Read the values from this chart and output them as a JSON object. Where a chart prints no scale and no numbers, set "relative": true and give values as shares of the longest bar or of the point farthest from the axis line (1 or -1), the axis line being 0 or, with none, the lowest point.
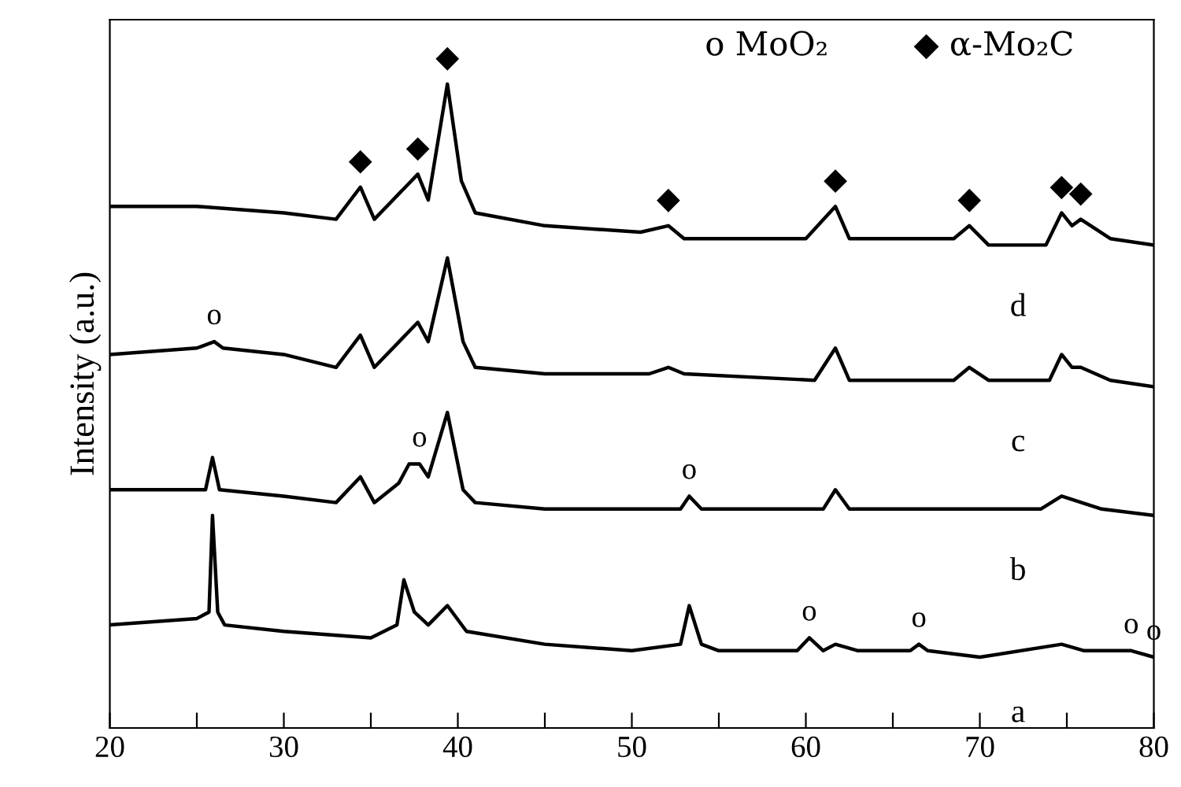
{
  "chart_data": {
    "type": "line",
    "relative": true,
    "ylabel": "Intensity (a.u.)",
    "xlim": [
      20,
      80
    ],
    "xticks": [
      20,
      {
        "value": 25,
        "label": null
      },
      30,
      {
        "value": 35,
        "label": null
      },
      40,
      {
        "value": 45,
        "label": null
      },
      50,
      {
        "value": 55,
        "label": null
      },
      60,
      {
        "value": 65,
        "label": null
      },
      70,
      {
        "value": 75,
        "label": null
      },
      80
    ],
    "tick_labels": "x",
    "grid": false,
    "legend": false,
    "marker": "none",
    "line_style": "solid",
    "series": [
      {
        "name": "d",
        "color": "#000000",
        "x": [
          20,
          25,
          30,
          33,
          34.4,
          35.2,
          37.7,
          38.3,
          39.4,
          40.2,
          41,
          45,
          50.5,
          52.1,
          53,
          60,
          61.7,
          62.5,
          68.5,
          69.4,
          70.5,
          73.8,
          74.7,
          75.3,
          75.8,
          77.5,
          80
        ],
        "values": [
          0.81,
          0.81,
          0.8,
          0.79,
          0.84,
          0.79,
          0.86,
          0.82,
          1.0,
          0.85,
          0.8,
          0.78,
          0.77,
          0.78,
          0.76,
          0.76,
          0.81,
          0.76,
          0.76,
          0.78,
          0.75,
          0.75,
          0.8,
          0.78,
          0.79,
          0.76,
          0.75
        ]
      },
      {
        "name": "c",
        "color": "#000000",
        "x": [
          20,
          25,
          26,
          26.5,
          30,
          33,
          34.4,
          35.2,
          37.7,
          38.3,
          39.4,
          40.3,
          41,
          45,
          51,
          52.1,
          53,
          60.5,
          61.7,
          62.5,
          68.5,
          69.4,
          70.5,
          74,
          74.7,
          75.3,
          75.8,
          77.5,
          80
        ],
        "values": [
          0.58,
          0.59,
          0.6,
          0.59,
          0.58,
          0.56,
          0.61,
          0.56,
          0.63,
          0.6,
          0.73,
          0.6,
          0.56,
          0.55,
          0.55,
          0.56,
          0.55,
          0.54,
          0.59,
          0.54,
          0.54,
          0.56,
          0.54,
          0.54,
          0.58,
          0.56,
          0.56,
          0.54,
          0.53
        ]
      },
      {
        "name": "b",
        "color": "#000000",
        "x": [
          20,
          25.5,
          25.9,
          26.3,
          30,
          33,
          34.4,
          35.2,
          36.6,
          37.2,
          37.8,
          38.3,
          39.4,
          40.3,
          41,
          45,
          52.8,
          53.3,
          54,
          61,
          61.7,
          62.5,
          69.4,
          73.5,
          74.7,
          77,
          80
        ],
        "values": [
          0.37,
          0.37,
          0.42,
          0.37,
          0.36,
          0.35,
          0.39,
          0.35,
          0.38,
          0.41,
          0.41,
          0.39,
          0.49,
          0.37,
          0.35,
          0.34,
          0.34,
          0.36,
          0.34,
          0.34,
          0.37,
          0.34,
          0.34,
          0.34,
          0.36,
          0.34,
          0.33
        ]
      },
      {
        "name": "a",
        "color": "#000000",
        "x": [
          20,
          25,
          25.7,
          25.9,
          26.2,
          26.6,
          30,
          35,
          36.5,
          36.9,
          37.5,
          38.3,
          39.4,
          40.5,
          45,
          50,
          52.8,
          53.3,
          54,
          55,
          59.5,
          60.2,
          61,
          61.7,
          63,
          66,
          66.5,
          67,
          70,
          74.7,
          76,
          78.7,
          80
        ],
        "values": [
          0.16,
          0.17,
          0.18,
          0.33,
          0.18,
          0.16,
          0.15,
          0.14,
          0.16,
          0.23,
          0.18,
          0.16,
          0.19,
          0.15,
          0.13,
          0.12,
          0.13,
          0.19,
          0.13,
          0.12,
          0.12,
          0.14,
          0.12,
          0.13,
          0.12,
          0.12,
          0.13,
          0.12,
          0.11,
          0.13,
          0.12,
          0.12,
          0.11
        ]
      }
    ],
    "annotations": [
      "o MoO₂",
      "◆ α-Mo₂C",
      {
        "text": "◆",
        "x": 34.4,
        "y": 0.84
      },
      {
        "text": "◆",
        "x": 37.7,
        "y": 0.86
      },
      {
        "text": "◆",
        "x": 39.4,
        "y": 1.0
      },
      {
        "text": "◆",
        "x": 52.1,
        "y": 0.78
      },
      {
        "text": "◆",
        "x": 61.7,
        "y": 0.81
      },
      {
        "text": "◆",
        "x": 69.4,
        "y": 0.78
      },
      {
        "text": "◆",
        "x": 74.7,
        "y": 0.8
      },
      {
        "text": "◆",
        "x": 75.8,
        "y": 0.79
      },
      {
        "text": "o",
        "x": 26,
        "y": 0.6
      },
      {
        "text": "o",
        "x": 37.8,
        "y": 0.41
      },
      {
        "text": "o",
        "x": 53.3,
        "y": 0.36
      },
      {
        "text": "o",
        "x": 60.2,
        "y": 0.14
      },
      {
        "text": "o",
        "x": 66.5,
        "y": 0.13
      },
      {
        "text": "o",
        "x": 78.7,
        "y": 0.12
      },
      {
        "text": "o",
        "x": 80,
        "y": 0.11
      }
    ]
  }
}
